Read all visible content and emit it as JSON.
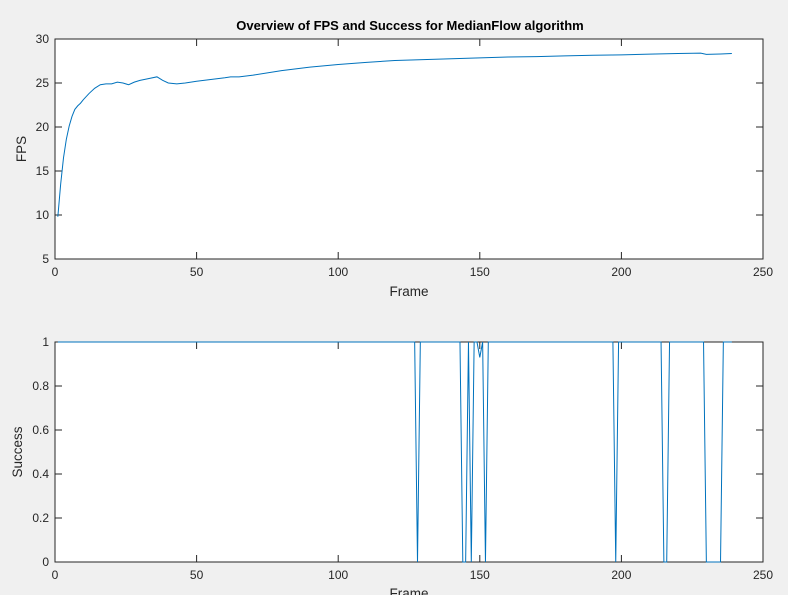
{
  "chart_data": [
    {
      "type": "line",
      "title": "Overview of FPS and Success for MedianFlow algorithm",
      "xlabel": "Frame",
      "ylabel": "FPS",
      "xlim": [
        0,
        250
      ],
      "ylim": [
        5,
        30
      ],
      "xticks": [
        0,
        50,
        100,
        150,
        200,
        250
      ],
      "yticks": [
        5,
        10,
        15,
        20,
        25,
        30
      ],
      "grid": false,
      "color": "#0072bd",
      "series": [
        {
          "x": [
            1,
            2,
            3,
            4,
            5,
            6,
            7,
            8,
            9,
            10,
            12,
            14,
            16,
            18,
            20,
            22,
            24,
            26,
            28,
            30,
            33,
            36,
            38,
            40,
            43,
            46,
            50,
            55,
            60,
            62,
            65,
            70,
            80,
            90,
            100,
            110,
            120,
            130,
            140,
            150,
            160,
            170,
            180,
            190,
            200,
            210,
            220,
            228,
            230,
            235,
            239
          ],
          "y": [
            9.8,
            13.5,
            16.5,
            18.6,
            20.1,
            21.2,
            22.0,
            22.4,
            22.7,
            23.1,
            23.8,
            24.4,
            24.8,
            24.9,
            24.9,
            25.1,
            25.0,
            24.8,
            25.1,
            25.3,
            25.5,
            25.7,
            25.3,
            25.0,
            24.9,
            25.0,
            25.2,
            25.4,
            25.6,
            25.7,
            25.7,
            25.9,
            26.4,
            26.8,
            27.1,
            27.35,
            27.55,
            27.65,
            27.75,
            27.85,
            27.95,
            28.0,
            28.08,
            28.15,
            28.2,
            28.28,
            28.35,
            28.4,
            28.25,
            28.3,
            28.35
          ]
        }
      ]
    },
    {
      "type": "line",
      "title": "",
      "xlabel": "Frame",
      "ylabel": "Success",
      "xlim": [
        0,
        250
      ],
      "ylim": [
        0,
        1
      ],
      "xticks": [
        0,
        50,
        100,
        150,
        200,
        250
      ],
      "yticks": [
        0,
        0.2,
        0.4,
        0.6,
        0.8,
        1
      ],
      "grid": false,
      "color": "#0072bd",
      "series": [
        {
          "x": [
            1,
            127,
            128,
            129,
            143,
            144,
            145,
            146,
            147,
            148,
            149,
            150,
            151,
            152,
            153,
            197,
            198,
            199,
            214,
            215,
            216,
            217,
            229,
            230,
            235,
            236,
            239
          ],
          "y": [
            1,
            1,
            0,
            1,
            1,
            0,
            0,
            1,
            0,
            1,
            1,
            0.93,
            1,
            0,
            1,
            1,
            0,
            1,
            1,
            0,
            0,
            1,
            1,
            0,
            0,
            1,
            1
          ]
        }
      ]
    }
  ]
}
